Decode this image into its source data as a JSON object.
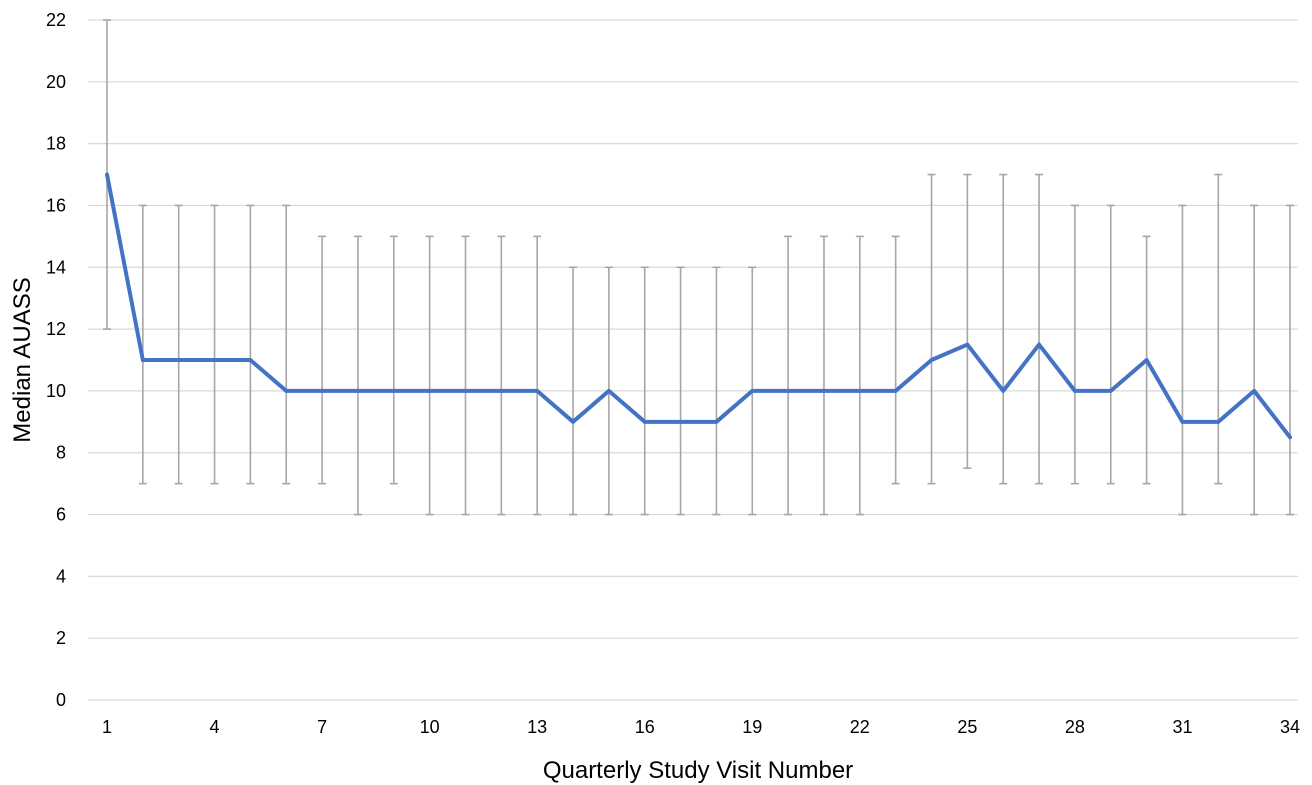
{
  "chart_data": {
    "type": "line",
    "title": "",
    "xlabel": "Quarterly Study Visit Number",
    "ylabel": "Median AUASS",
    "xlim": [
      1,
      34
    ],
    "ylim": [
      0,
      22
    ],
    "grid": true,
    "legend": "none",
    "x_ticks": [
      1,
      4,
      7,
      10,
      13,
      16,
      19,
      22,
      25,
      28,
      31,
      34
    ],
    "y_ticks": [
      0,
      2,
      4,
      6,
      8,
      10,
      12,
      14,
      16,
      18,
      20,
      22
    ],
    "x_tick_labels": [
      "1",
      "4",
      "7",
      "10",
      "13",
      "16",
      "19",
      "22",
      "25",
      "28",
      "31",
      "34"
    ],
    "y_tick_labels": [
      "0",
      "2",
      "4",
      "6",
      "8",
      "10",
      "12",
      "14",
      "16",
      "18",
      "20",
      "22"
    ],
    "series": [
      {
        "color": "#4472C4",
        "points": [
          {
            "x": 1,
            "y": 17,
            "low": 12,
            "high": 22
          },
          {
            "x": 2,
            "y": 11,
            "low": 7,
            "high": 16
          },
          {
            "x": 3,
            "y": 11,
            "low": 7,
            "high": 16
          },
          {
            "x": 4,
            "y": 11,
            "low": 7,
            "high": 16
          },
          {
            "x": 5,
            "y": 11,
            "low": 7,
            "high": 16
          },
          {
            "x": 6,
            "y": 10,
            "low": 7,
            "high": 16
          },
          {
            "x": 7,
            "y": 10,
            "low": 7,
            "high": 15
          },
          {
            "x": 8,
            "y": 10,
            "low": 6,
            "high": 15
          },
          {
            "x": 9,
            "y": 10,
            "low": 7,
            "high": 15
          },
          {
            "x": 10,
            "y": 10,
            "low": 6,
            "high": 15
          },
          {
            "x": 11,
            "y": 10,
            "low": 6,
            "high": 15
          },
          {
            "x": 12,
            "y": 10,
            "low": 6,
            "high": 15
          },
          {
            "x": 13,
            "y": 10,
            "low": 6,
            "high": 15
          },
          {
            "x": 14,
            "y": 9,
            "low": 6,
            "high": 14
          },
          {
            "x": 15,
            "y": 10,
            "low": 6,
            "high": 14
          },
          {
            "x": 16,
            "y": 9,
            "low": 6,
            "high": 14
          },
          {
            "x": 17,
            "y": 9,
            "low": 6,
            "high": 14
          },
          {
            "x": 18,
            "y": 9,
            "low": 6,
            "high": 14
          },
          {
            "x": 19,
            "y": 10,
            "low": 6,
            "high": 14
          },
          {
            "x": 20,
            "y": 10,
            "low": 6,
            "high": 15
          },
          {
            "x": 21,
            "y": 10,
            "low": 6,
            "high": 15
          },
          {
            "x": 22,
            "y": 10,
            "low": 6,
            "high": 15
          },
          {
            "x": 23,
            "y": 10,
            "low": 7,
            "high": 15
          },
          {
            "x": 24,
            "y": 11,
            "low": 7,
            "high": 17
          },
          {
            "x": 25,
            "y": 11.5,
            "low": 7.5,
            "high": 17
          },
          {
            "x": 26,
            "y": 10,
            "low": 7,
            "high": 17
          },
          {
            "x": 27,
            "y": 11.5,
            "low": 7,
            "high": 17
          },
          {
            "x": 28,
            "y": 10,
            "low": 7,
            "high": 16
          },
          {
            "x": 29,
            "y": 10,
            "low": 7,
            "high": 16
          },
          {
            "x": 30,
            "y": 11,
            "low": 7,
            "high": 15
          },
          {
            "x": 31,
            "y": 9,
            "low": 6,
            "high": 16
          },
          {
            "x": 32,
            "y": 9,
            "low": 7,
            "high": 17
          },
          {
            "x": 33,
            "y": 10,
            "low": 6,
            "high": 16
          },
          {
            "x": 34,
            "y": 8.5,
            "low": 6,
            "high": 16
          }
        ]
      }
    ],
    "colors": {
      "line": "#4472C4",
      "error_bars": "#A6A6A6",
      "grid": "#D9D9D9",
      "text": "#000000"
    }
  }
}
